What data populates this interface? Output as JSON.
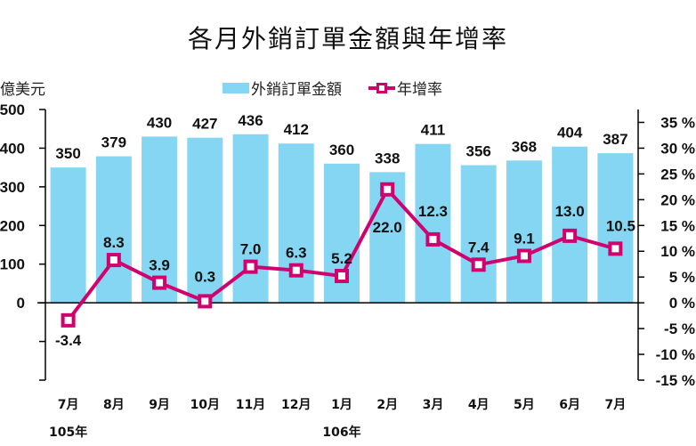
{
  "chart_data": {
    "type": "bar+line",
    "title": "各月外銷訂單金額與年增率",
    "ylabel_left": "億美元",
    "categories": [
      "7月",
      "8月",
      "9月",
      "10月",
      "11月",
      "12月",
      "1月",
      "2月",
      "3月",
      "4月",
      "5月",
      "6月",
      "7月"
    ],
    "year_labels": [
      {
        "index": 0,
        "label": "105年"
      },
      {
        "index": 6,
        "label": "106年"
      }
    ],
    "series": [
      {
        "name": "外銷訂單金額",
        "type": "bar",
        "axis": "left",
        "color": "#85d6f2",
        "values": [
          350,
          379,
          430,
          427,
          436,
          412,
          360,
          338,
          411,
          356,
          368,
          404,
          387
        ],
        "labels": [
          "350",
          "379",
          "430",
          "427",
          "436",
          "412",
          "360",
          "338",
          "411",
          "356",
          "368",
          "404",
          "387"
        ]
      },
      {
        "name": "年增率",
        "type": "line",
        "axis": "right",
        "color": "#d0006f",
        "values": [
          -3.4,
          8.3,
          3.9,
          0.3,
          7.0,
          6.3,
          5.2,
          22.0,
          12.3,
          7.4,
          9.1,
          13.0,
          10.5
        ],
        "labels": [
          "-3.4",
          "8.3",
          "3.9",
          "0.3",
          "7.0",
          "6.3",
          "5.2",
          "22.0",
          "12.3",
          "7.4",
          "9.1",
          "13.0",
          "10.5"
        ]
      }
    ],
    "left_axis": {
      "ylim": [
        -200,
        500
      ],
      "ticks": [
        500,
        400,
        300,
        200,
        100,
        0,
        -100,
        -200
      ],
      "tick_labels": [
        "500",
        "400",
        "300",
        "200",
        "100",
        "0",
        "",
        ""
      ]
    },
    "right_axis": {
      "ylim": [
        -15,
        37.5
      ],
      "ticks": [
        35,
        30,
        25,
        20,
        15,
        10,
        5,
        0,
        -5,
        -10,
        -15
      ],
      "tick_labels": [
        "35 %",
        "30 %",
        "25 %",
        "20 %",
        "15 %",
        "10 %",
        "5 %",
        "0 %",
        "-5 %",
        "-10 %",
        "-15 %"
      ]
    },
    "legend": {
      "placement": "top-center",
      "entries": [
        "外銷訂單金額",
        "年增率"
      ]
    },
    "grid": false
  }
}
